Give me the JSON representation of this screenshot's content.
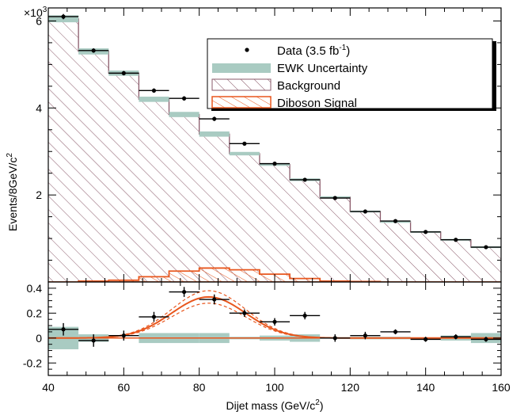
{
  "chart_data": [
    {
      "type": "histogram",
      "panel": "main",
      "ylabel": "Events/8GeV/c",
      "ylabel_sup": "2",
      "yscale_label": "×10",
      "yscale_exp": "3",
      "yticks": [
        "2",
        "4",
        "6"
      ],
      "ylim": [
        0,
        6.3
      ],
      "xlim": [
        40,
        160
      ],
      "bin_edges": [
        40,
        48,
        56,
        64,
        72,
        80,
        88,
        96,
        104,
        112,
        120,
        128,
        136,
        144,
        152,
        160
      ],
      "background": [
        6.05,
        5.3,
        4.8,
        4.2,
        3.85,
        3.4,
        2.95,
        2.7,
        2.35,
        1.95,
        1.62,
        1.38,
        1.15,
        0.97,
        0.8
      ],
      "ewk_uncertainty": [
        0.08,
        0.07,
        0.06,
        0.06,
        0.06,
        0.06,
        0.04,
        0.03,
        0.03,
        0.02,
        0.02,
        0.02,
        0.02,
        0.02,
        0.02
      ],
      "diboson_signal": [
        0.0,
        0.02,
        0.04,
        0.12,
        0.25,
        0.32,
        0.28,
        0.18,
        0.08,
        0.02,
        0.01,
        0.0,
        0.0,
        0.0,
        0.0
      ],
      "data": {
        "x": [
          44,
          52,
          60,
          68,
          76,
          84,
          92,
          100,
          108,
          116,
          124,
          132,
          140,
          148,
          156
        ],
        "y": [
          6.1,
          5.32,
          4.8,
          4.4,
          4.22,
          3.75,
          3.18,
          2.72,
          2.35,
          1.93,
          1.62,
          1.4,
          1.15,
          0.97,
          0.8
        ],
        "yerr": [
          0.06,
          0.05,
          0.05,
          0.05,
          0.05,
          0.05,
          0.04,
          0.04,
          0.04,
          0.03,
          0.03,
          0.03,
          0.03,
          0.03,
          0.03
        ]
      },
      "legend": {
        "position": "top-right",
        "entries": [
          {
            "label": "Data (3.5 fb",
            "sup": "-1",
            "suffix": ")",
            "kind": "data"
          },
          {
            "label": "EWK Uncertainty",
            "kind": "band",
            "color": "#a9cbc2"
          },
          {
            "label": "Background",
            "kind": "hatch",
            "color": "#8a5a6a"
          },
          {
            "label": "Diboson Signal",
            "kind": "signal",
            "color": "#e8571e"
          }
        ]
      },
      "colors": {
        "background_line": "#8a5a6a",
        "ewk_band": "#a9cbc2",
        "signal": "#e8571e",
        "data": "#000000"
      }
    },
    {
      "type": "scatter",
      "panel": "ratio",
      "xlabel": "Dijet mass (GeV/c",
      "xlabel_sup": "2",
      "xlabel_suffix": ")",
      "xticks": [
        "40",
        "60",
        "80",
        "100",
        "120",
        "140",
        "160"
      ],
      "yticks": [
        "-0.2",
        "0",
        "0.2",
        "0.4"
      ],
      "ylim": [
        -0.3,
        0.45
      ],
      "xlim": [
        40,
        160
      ],
      "data": {
        "x": [
          44,
          52,
          60,
          68,
          76,
          84,
          92,
          100,
          108,
          116,
          124,
          132,
          140,
          148,
          156
        ],
        "y": [
          0.07,
          -0.02,
          0.02,
          0.17,
          0.37,
          0.31,
          0.2,
          0.13,
          0.18,
          0.0,
          0.02,
          0.05,
          -0.01,
          0.01,
          -0.01
        ],
        "yerr": [
          0.05,
          0.05,
          0.04,
          0.04,
          0.04,
          0.04,
          0.03,
          0.03,
          0.03,
          0.03,
          0.03,
          0.02,
          0.02,
          0.02,
          0.02
        ]
      },
      "ewk_band": [
        0.09,
        0.03,
        0.0,
        0.04,
        0.04,
        0.04,
        0.01,
        0.02,
        0.03,
        0.0,
        0.01,
        0.01,
        0.0,
        0.02,
        0.04
      ],
      "signal_fit": {
        "mean": 82.5,
        "sigma": 9.8,
        "amplitude": 0.33,
        "band_low": 0.28,
        "band_high": 0.38
      },
      "colors": {
        "ewk_band": "#a9cbc2",
        "signal": "#e8571e"
      }
    }
  ]
}
